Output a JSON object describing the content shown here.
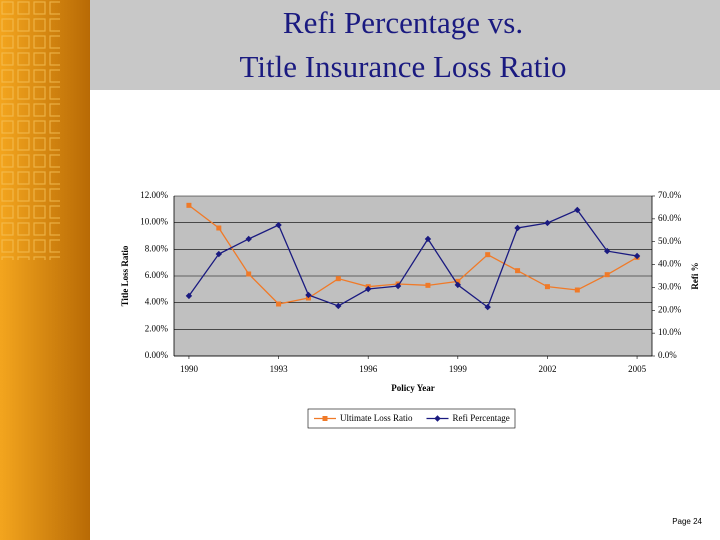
{
  "slide": {
    "title": [
      "Refi Percentage vs.",
      "Title Insurance Loss Ratio"
    ],
    "footer": "Page 24"
  },
  "chart_data": {
    "type": "line",
    "x": [
      1990,
      1991,
      1992,
      1993,
      1994,
      1995,
      1996,
      1997,
      1998,
      1999,
      2000,
      2001,
      2002,
      2003,
      2004,
      2005
    ],
    "series": [
      {
        "name": "Ultimate Loss Ratio",
        "color": "#f07a28",
        "marker": "square",
        "values": [
          11.3,
          9.6,
          6.15,
          3.9,
          4.35,
          5.8,
          5.2,
          5.4,
          5.3,
          5.6,
          7.6,
          6.4,
          5.2,
          4.95,
          6.1,
          7.4
        ]
      },
      {
        "name": "Refi Percentage",
        "color": "#1a1a80",
        "marker": "diamond",
        "axis": "y2",
        "values": [
          26.3,
          44.6,
          51.2,
          57.3,
          26.7,
          21.9,
          29.3,
          30.6,
          51.2,
          31.1,
          21.4,
          56,
          58.2,
          63.9,
          45.9,
          43.75
        ]
      }
    ],
    "x_label": "Policy Year",
    "y_label": "Title Loss Ratio",
    "y2_label": "Refi %",
    "xlim": [
      1989.5,
      2005.5
    ],
    "xticks": [
      1990,
      1993,
      1996,
      1999,
      2002,
      2005
    ],
    "ylim": [
      0,
      12
    ],
    "yticks": [
      {
        "value": 0,
        "label": "0.00%"
      },
      {
        "value": 2,
        "label": "2.00%"
      },
      {
        "value": 4,
        "label": "4.00%"
      },
      {
        "value": 6,
        "label": "6.00%"
      },
      {
        "value": 8,
        "label": "8.00%"
      },
      {
        "value": 10,
        "label": "10.00%"
      },
      {
        "value": 12,
        "label": "12.00%"
      }
    ],
    "y2lim": [
      0,
      70
    ],
    "y2ticks": [
      {
        "value": 0,
        "label": "0.0%"
      },
      {
        "value": 10,
        "label": "10.0%"
      },
      {
        "value": 20,
        "label": "20.0%"
      },
      {
        "value": 30,
        "label": "30.0%"
      },
      {
        "value": 40,
        "label": "40.0%"
      },
      {
        "value": 50,
        "label": "50.0%"
      },
      {
        "value": 60,
        "label": "60.0%"
      },
      {
        "value": 70,
        "label": "70.0%"
      }
    ],
    "grid": true,
    "legend": "bottom"
  }
}
